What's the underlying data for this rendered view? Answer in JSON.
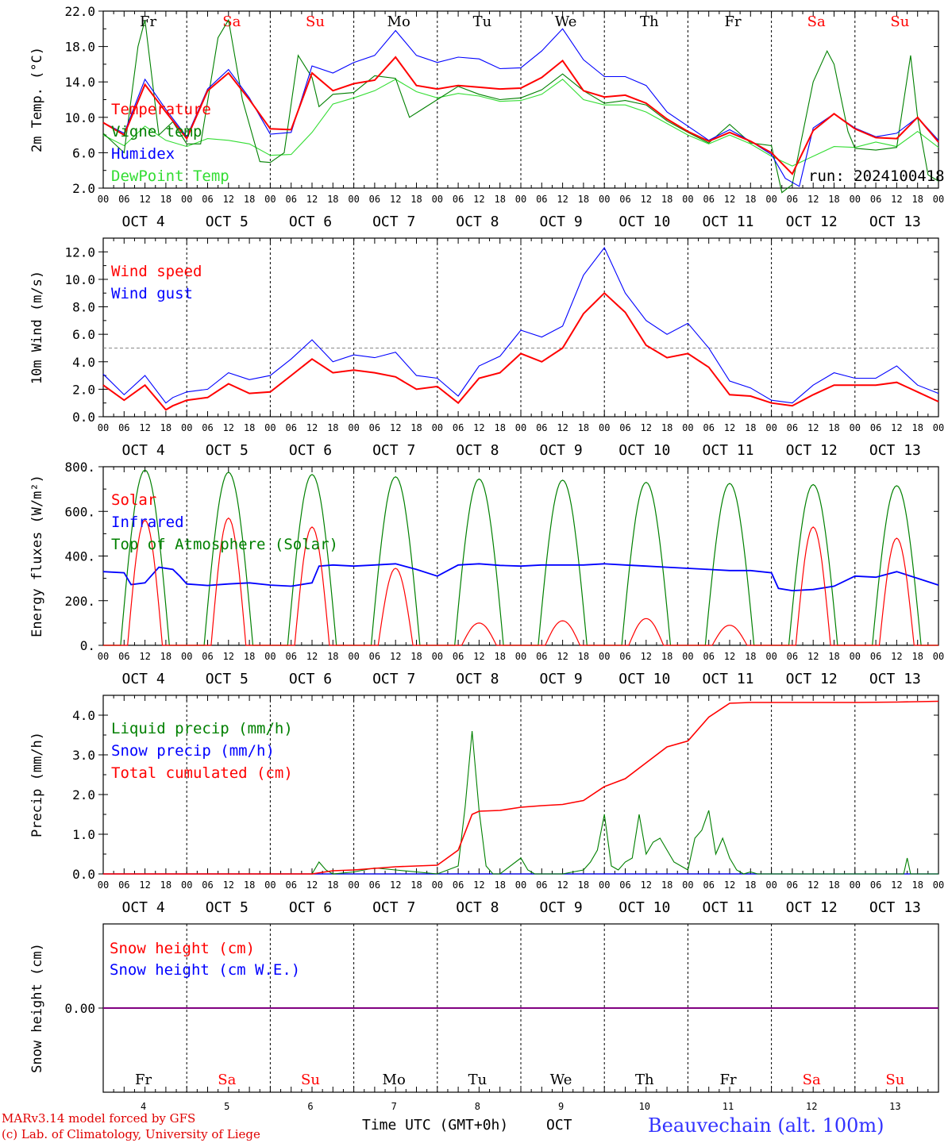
{
  "run_label": "run: 2024100418",
  "footer": {
    "model_line": "MARv3.14 model forced by GFS",
    "copyright_line": "(c) Lab. of Climatology, University of Liege",
    "time_axis_label": "Time UTC (GMT+0h)",
    "month_label": "OCT",
    "station": "Beauvechain (alt. 100m)"
  },
  "date_labels": [
    "OCT  4",
    "OCT  5",
    "OCT  6",
    "OCT  7",
    "OCT  8",
    "OCT  9",
    "OCT 10",
    "OCT 11",
    "OCT 12",
    "OCT 13"
  ],
  "day_numbers": [
    "4",
    "5",
    "6",
    "7",
    "8",
    "9",
    "10",
    "11",
    "12",
    "13"
  ],
  "day_names": [
    "Fr",
    "Sa",
    "Su",
    "Mo",
    "Tu",
    "We",
    "Th",
    "Fr",
    "Sa",
    "Su"
  ],
  "weekend_flags": [
    false,
    true,
    true,
    false,
    false,
    false,
    false,
    false,
    true,
    true
  ],
  "hour_ticks": [
    "00",
    "06",
    "12",
    "18"
  ],
  "colors": {
    "red": "#ff0000",
    "green": "#008000",
    "blue": "#0000ff",
    "lightgreen": "#33dd33",
    "purple": "#800080",
    "weekend": "#ff0000"
  },
  "chart_data": [
    {
      "type": "line",
      "ylabel": "2m Temp. (°C)",
      "ylim": [
        2.0,
        22.0
      ],
      "yticks": [
        "22.0",
        "18.0",
        "14.0",
        "10.0",
        "6.0",
        "2.0"
      ],
      "x_unit": "hours since OCT 4 00 UTC",
      "series": [
        {
          "name": "Temperature",
          "color": "#ff0000",
          "x": [
            0,
            6,
            12,
            18,
            24,
            30,
            36,
            42,
            48,
            54,
            60,
            66,
            72,
            78,
            84,
            90,
            96,
            102,
            108,
            114,
            120,
            126,
            132,
            138,
            144,
            150,
            156,
            162,
            168,
            174,
            180,
            186,
            192,
            198,
            204,
            210,
            216,
            222,
            228,
            234,
            240
          ],
          "y": [
            9.4,
            8.0,
            13.7,
            10.6,
            7.6,
            13.0,
            15.0,
            12.0,
            8.7,
            8.6,
            15.0,
            13.0,
            13.8,
            14.2,
            16.8,
            13.6,
            13.2,
            13.6,
            13.4,
            13.2,
            13.3,
            14.5,
            16.4,
            13.0,
            12.3,
            12.5,
            11.6,
            9.8,
            8.4,
            7.3,
            8.3,
            7.3,
            6.0,
            3.6,
            8.5,
            10.4,
            8.7,
            7.7,
            7.6,
            10.0,
            7.2
          ]
        },
        {
          "name": "Vigne temp",
          "color": "#008000",
          "x": [
            0,
            6,
            10,
            12,
            16,
            20,
            24,
            28,
            33,
            36,
            40,
            45,
            48,
            52,
            56,
            60,
            62,
            66,
            72,
            78,
            84,
            88,
            92,
            96,
            102,
            108,
            114,
            120,
            126,
            132,
            138,
            144,
            150,
            156,
            162,
            168,
            174,
            180,
            186,
            192,
            195,
            198,
            204,
            208,
            210,
            214,
            216,
            222,
            228,
            232,
            234,
            237,
            240
          ],
          "y": [
            8.2,
            6.0,
            18.0,
            21.0,
            8.0,
            9.5,
            7.0,
            7.0,
            19.0,
            21.0,
            12.0,
            5.0,
            4.9,
            6.0,
            17.0,
            14.5,
            11.2,
            12.6,
            12.8,
            14.7,
            14.4,
            10.0,
            11.0,
            12.0,
            13.5,
            12.6,
            12.0,
            12.2,
            13.1,
            14.9,
            13.0,
            11.6,
            11.9,
            11.4,
            9.6,
            8.3,
            7.1,
            9.2,
            7.1,
            6.8,
            1.5,
            2.4,
            14.0,
            17.5,
            16.0,
            8.4,
            6.5,
            6.3,
            6.6,
            17.0,
            10.0,
            3.5,
            2.8
          ]
        },
        {
          "name": "Humidex",
          "color": "#0000ff",
          "x": [
            0,
            6,
            12,
            18,
            24,
            30,
            36,
            42,
            48,
            54,
            60,
            66,
            72,
            78,
            84,
            90,
            96,
            102,
            108,
            114,
            120,
            126,
            132,
            138,
            144,
            150,
            156,
            162,
            168,
            174,
            180,
            186,
            192,
            196,
            200,
            204,
            210,
            216,
            222,
            228,
            234,
            240
          ],
          "y": [
            9.4,
            8.2,
            14.3,
            10.9,
            7.8,
            13.2,
            15.4,
            12.2,
            8.1,
            8.3,
            15.8,
            15.0,
            16.2,
            17.0,
            19.8,
            17.0,
            16.2,
            16.8,
            16.6,
            15.5,
            15.6,
            17.5,
            20.0,
            16.5,
            14.6,
            14.6,
            13.6,
            10.6,
            9.0,
            7.4,
            8.6,
            7.3,
            5.8,
            3.1,
            2.2,
            8.8,
            10.4,
            8.8,
            7.8,
            8.2,
            10.0,
            7.4
          ]
        },
        {
          "name": "DewPoint Temp",
          "color": "#33dd33",
          "x": [
            0,
            6,
            12,
            18,
            24,
            30,
            36,
            42,
            48,
            54,
            60,
            66,
            72,
            78,
            84,
            90,
            96,
            102,
            108,
            114,
            120,
            126,
            132,
            138,
            144,
            150,
            156,
            162,
            168,
            174,
            180,
            186,
            192,
            198,
            204,
            210,
            216,
            222,
            228,
            234,
            240
          ],
          "y": [
            8.0,
            6.8,
            9.0,
            7.4,
            6.7,
            7.6,
            7.4,
            7.0,
            5.7,
            5.8,
            8.3,
            11.5,
            12.2,
            13.0,
            14.3,
            12.9,
            12.2,
            12.7,
            12.4,
            11.8,
            11.9,
            12.6,
            14.3,
            12.0,
            11.4,
            11.4,
            10.6,
            9.3,
            8.0,
            7.0,
            8.0,
            7.0,
            5.6,
            4.5,
            5.6,
            6.7,
            6.6,
            7.2,
            6.7,
            8.4,
            6.6
          ]
        }
      ]
    },
    {
      "type": "line",
      "ylabel": "10m Wind (m/s)",
      "ylim": [
        0.0,
        13.0
      ],
      "yticks": [
        "12.0",
        "10.0",
        "8.0",
        "6.0",
        "4.0",
        "2.0",
        "0.0"
      ],
      "reference_line": 5.0,
      "x_unit": "hours since OCT 4 00 UTC",
      "series": [
        {
          "name": "Wind speed",
          "color": "#ff0000",
          "x": [
            0,
            6,
            12,
            18,
            20,
            24,
            30,
            36,
            42,
            48,
            54,
            60,
            66,
            72,
            78,
            84,
            90,
            96,
            102,
            108,
            114,
            120,
            126,
            132,
            138,
            144,
            150,
            156,
            162,
            168,
            174,
            180,
            186,
            192,
            198,
            204,
            210,
            216,
            222,
            228,
            234,
            240
          ],
          "y": [
            2.3,
            1.2,
            2.3,
            0.5,
            0.8,
            1.2,
            1.4,
            2.4,
            1.7,
            1.8,
            3.0,
            4.2,
            3.2,
            3.4,
            3.2,
            2.9,
            2.0,
            2.2,
            1.0,
            2.8,
            3.2,
            4.6,
            4.0,
            5.0,
            7.5,
            9.0,
            7.6,
            5.2,
            4.3,
            4.6,
            3.6,
            1.6,
            1.5,
            1.0,
            0.8,
            1.6,
            2.3,
            2.3,
            2.3,
            2.5,
            1.8,
            1.1
          ]
        },
        {
          "name": "Wind gust",
          "color": "#0000ff",
          "x": [
            0,
            6,
            12,
            18,
            20,
            24,
            30,
            36,
            42,
            48,
            54,
            60,
            66,
            72,
            78,
            84,
            90,
            96,
            102,
            108,
            114,
            120,
            126,
            132,
            138,
            144,
            150,
            156,
            162,
            168,
            174,
            180,
            186,
            192,
            198,
            204,
            210,
            216,
            222,
            228,
            234,
            240
          ],
          "y": [
            3.1,
            1.6,
            3.0,
            1.0,
            1.4,
            1.8,
            2.0,
            3.2,
            2.7,
            3.0,
            4.2,
            5.6,
            4.0,
            4.5,
            4.3,
            4.7,
            3.0,
            2.8,
            1.5,
            3.7,
            4.4,
            6.3,
            5.8,
            6.6,
            10.3,
            12.3,
            9.0,
            7.0,
            6.0,
            6.8,
            5.0,
            2.6,
            2.1,
            1.2,
            1.0,
            2.3,
            3.2,
            2.8,
            2.8,
            3.7,
            2.3,
            1.7
          ]
        }
      ]
    },
    {
      "type": "line",
      "ylabel": "Energy fluxes (W/m²)",
      "ylim": [
        0,
        800
      ],
      "yticks": [
        "800.",
        "600.",
        "400.",
        "200.",
        "0."
      ],
      "x_unit": "hours since OCT 4 00 UTC",
      "series": [
        {
          "name": "Solar",
          "color": "#ff0000",
          "peak_hours": [
            12,
            36,
            60,
            84,
            108,
            132,
            156,
            180,
            204,
            228
          ],
          "peak_values": [
            560,
            570,
            530,
            345,
            100,
            110,
            120,
            90,
            530,
            480
          ]
        },
        {
          "name": "Infrared",
          "color": "#0000ff",
          "x": [
            0,
            6,
            8,
            12,
            16,
            20,
            22,
            24,
            30,
            36,
            42,
            48,
            54,
            60,
            62,
            66,
            72,
            78,
            84,
            90,
            96,
            102,
            108,
            114,
            120,
            126,
            132,
            138,
            144,
            150,
            156,
            162,
            168,
            174,
            180,
            186,
            192,
            194,
            198,
            204,
            210,
            216,
            222,
            228,
            234,
            240
          ],
          "y": [
            330,
            325,
            272,
            280,
            350,
            340,
            310,
            275,
            268,
            275,
            280,
            270,
            265,
            280,
            355,
            360,
            355,
            360,
            365,
            340,
            310,
            360,
            365,
            358,
            355,
            360,
            360,
            360,
            365,
            360,
            355,
            350,
            345,
            340,
            335,
            335,
            325,
            255,
            245,
            250,
            265,
            310,
            305,
            330,
            300,
            270
          ]
        },
        {
          "name": "Top of Atmosphere (Solar)",
          "color": "#008000",
          "peak_hours": [
            12,
            36,
            60,
            84,
            108,
            132,
            156,
            180,
            204,
            228
          ],
          "peak_values": [
            785,
            775,
            765,
            755,
            745,
            740,
            730,
            725,
            720,
            715
          ]
        }
      ]
    },
    {
      "type": "line",
      "ylabel": "Precip (mm/h)",
      "ylim": [
        0.0,
        4.5
      ],
      "yticks": [
        "4.0",
        "3.0",
        "2.0",
        "1.0",
        "0.0"
      ],
      "x_unit": "hours since OCT 4 00 UTC",
      "series": [
        {
          "name": "Liquid precip (mm/h)",
          "color": "#008000",
          "x": [
            0,
            60,
            62,
            64,
            66,
            72,
            78,
            84,
            96,
            102,
            104,
            106,
            108,
            110,
            112,
            114,
            120,
            122,
            124,
            126,
            132,
            138,
            140,
            142,
            144,
            146,
            148,
            150,
            152,
            154,
            156,
            158,
            160,
            162,
            164,
            168,
            170,
            172,
            174,
            176,
            178,
            180,
            182,
            184,
            186,
            188,
            190,
            192,
            230,
            231,
            232,
            240
          ],
          "y": [
            0,
            0,
            0.3,
            0.1,
            0,
            0.05,
            0.15,
            0.1,
            0,
            0.2,
            1.7,
            3.6,
            1.6,
            0.2,
            0,
            0,
            0.4,
            0.1,
            0,
            0,
            0,
            0.1,
            0.3,
            0.6,
            1.5,
            0.2,
            0.1,
            0.3,
            0.4,
            1.5,
            0.5,
            0.8,
            0.9,
            0.6,
            0.3,
            0.1,
            0.9,
            1.1,
            1.6,
            0.5,
            0.9,
            0.4,
            0.1,
            0,
            0.05,
            0,
            0,
            0,
            0,
            0.4,
            0,
            0
          ]
        },
        {
          "name": "Snow precip (mm/h)",
          "color": "#0000ff",
          "x": [
            0,
            240
          ],
          "y": [
            0,
            0
          ]
        },
        {
          "name": "Total cumulated (cm)",
          "color": "#ff0000",
          "x": [
            0,
            60,
            66,
            72,
            84,
            96,
            102,
            106,
            108,
            114,
            120,
            126,
            132,
            138,
            144,
            150,
            156,
            162,
            168,
            174,
            180,
            186,
            192,
            204,
            216,
            228,
            240
          ],
          "y": [
            0,
            0,
            0.08,
            0.1,
            0.18,
            0.22,
            0.6,
            1.5,
            1.58,
            1.6,
            1.68,
            1.72,
            1.75,
            1.85,
            2.2,
            2.4,
            2.8,
            3.2,
            3.35,
            3.95,
            4.3,
            4.32,
            4.32,
            4.32,
            4.32,
            4.33,
            4.35
          ]
        }
      ]
    },
    {
      "type": "line",
      "ylabel": "Snow height (cm)",
      "ylim": [
        -1.0,
        1.0
      ],
      "yticks": [
        "0.00"
      ],
      "x_unit": "hours since OCT 4 00 UTC",
      "series": [
        {
          "name": "Snow height (cm)",
          "color": "#ff0000",
          "x": [
            0,
            240
          ],
          "y": [
            0,
            0
          ]
        },
        {
          "name": "Snow height (cm W.E.)",
          "color": "#0000ff",
          "x": [
            0,
            240
          ],
          "y": [
            0,
            0
          ]
        }
      ]
    }
  ]
}
